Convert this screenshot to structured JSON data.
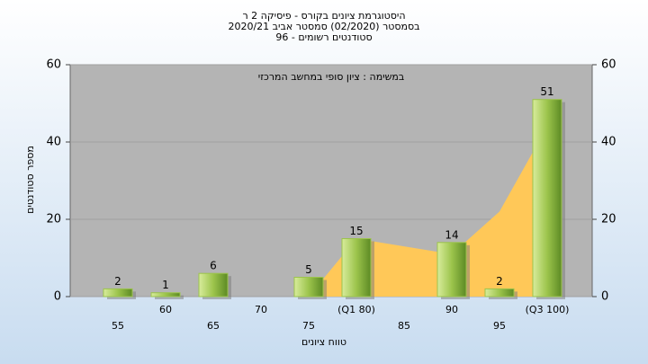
{
  "chart_data": {
    "type": "bar",
    "title": [
      "היסטוגרמת ציונים בקורס - פיסיקה 2 ר",
      "בסמסטר  (02/2020)  סמסטר אביב 2020/21",
      "סטודנטים רשומים - 96"
    ],
    "annotation": "במשימה : ציון סופי במחשב המרכזי",
    "y_label": "מספר סטודנטים",
    "x_label": "טווח ציונים",
    "categories": [
      "55",
      "60",
      "65",
      "70",
      "75",
      "(Q1 80)",
      "85",
      "90",
      "95",
      "(Q3 100)"
    ],
    "values": [
      2,
      1,
      6,
      null,
      5,
      15,
      null,
      14,
      2,
      51
    ],
    "color": "#9cc44c",
    "area": {
      "color": "#ffc858",
      "values": [
        null,
        null,
        null,
        null,
        0,
        15,
        13,
        11,
        22,
        44
      ]
    },
    "ylim": [
      0,
      60
    ],
    "yticks": [
      0,
      20,
      40,
      60
    ],
    "y2lim": [
      0,
      60
    ],
    "y2ticks": [
      0,
      20,
      40,
      60
    ],
    "grid": true
  }
}
